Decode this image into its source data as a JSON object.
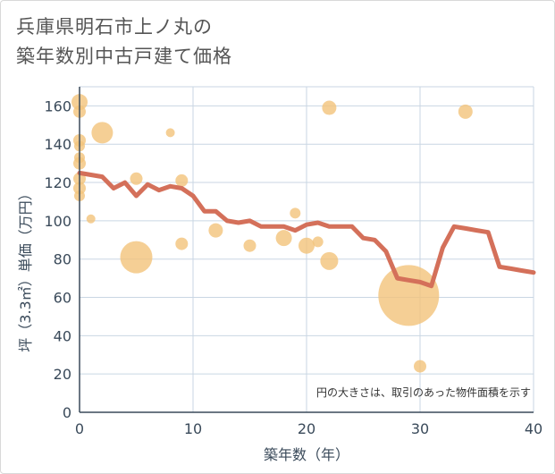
{
  "title_lines": [
    "兵庫県明石市上ノ丸の",
    "築年数別中古戸建て価格"
  ],
  "colors": {
    "line": "#d4705a",
    "bubble": "#f3c37b",
    "grid": "#c9d6e3",
    "axis": "#3a4a5a"
  },
  "chart_data": {
    "type": "line+bubble",
    "title": "兵庫県明石市上ノ丸の築年数別中古戸建て価格",
    "xlabel": "築年数（年）",
    "ylabel": "坪（3.3㎡）単価（万円）",
    "xlim": [
      0,
      40
    ],
    "ylim": [
      0,
      170
    ],
    "xticks": [
      0,
      10,
      20,
      30,
      40
    ],
    "yticks": [
      0,
      20,
      40,
      60,
      80,
      100,
      120,
      140,
      160
    ],
    "note": "円の大きさは、取引のあった物件面積を示す",
    "line": {
      "x": [
        0,
        1,
        2,
        3,
        4,
        5,
        6,
        7,
        8,
        9,
        10,
        11,
        12,
        13,
        14,
        15,
        16,
        17,
        18,
        19,
        20,
        21,
        22,
        23,
        24,
        25,
        26,
        27,
        28,
        29,
        30,
        31,
        32,
        33,
        34,
        35,
        36,
        37,
        38,
        39,
        40
      ],
      "y": [
        125,
        124,
        123,
        117,
        120,
        113,
        119,
        116,
        118,
        117,
        113,
        105,
        105,
        100,
        99,
        100,
        97,
        97,
        97,
        95,
        98,
        99,
        97,
        97,
        97,
        91,
        90,
        84,
        70,
        69,
        68,
        66,
        86,
        97,
        96,
        95,
        94,
        76,
        75,
        74,
        73
      ]
    },
    "bubbles": [
      {
        "x": 0,
        "y": 162,
        "size": 9
      },
      {
        "x": 0,
        "y": 157,
        "size": 7
      },
      {
        "x": 0,
        "y": 142,
        "size": 7
      },
      {
        "x": 0,
        "y": 139,
        "size": 6
      },
      {
        "x": 0,
        "y": 133,
        "size": 6
      },
      {
        "x": 0,
        "y": 130,
        "size": 7
      },
      {
        "x": 0,
        "y": 122,
        "size": 7
      },
      {
        "x": 0,
        "y": 117,
        "size": 7
      },
      {
        "x": 0,
        "y": 113,
        "size": 6
      },
      {
        "x": 1,
        "y": 101,
        "size": 5
      },
      {
        "x": 2,
        "y": 146,
        "size": 12
      },
      {
        "x": 5,
        "y": 122,
        "size": 7
      },
      {
        "x": 5,
        "y": 81,
        "size": 18
      },
      {
        "x": 8,
        "y": 146,
        "size": 5
      },
      {
        "x": 9,
        "y": 121,
        "size": 7
      },
      {
        "x": 9,
        "y": 88,
        "size": 7
      },
      {
        "x": 12,
        "y": 95,
        "size": 8
      },
      {
        "x": 15,
        "y": 87,
        "size": 7
      },
      {
        "x": 18,
        "y": 91,
        "size": 9
      },
      {
        "x": 19,
        "y": 104,
        "size": 6
      },
      {
        "x": 20,
        "y": 87,
        "size": 9
      },
      {
        "x": 21,
        "y": 89,
        "size": 6
      },
      {
        "x": 22,
        "y": 159,
        "size": 8
      },
      {
        "x": 22,
        "y": 79,
        "size": 10
      },
      {
        "x": 29,
        "y": 61,
        "size": 34
      },
      {
        "x": 30,
        "y": 24,
        "size": 7
      },
      {
        "x": 34,
        "y": 157,
        "size": 8
      }
    ]
  }
}
